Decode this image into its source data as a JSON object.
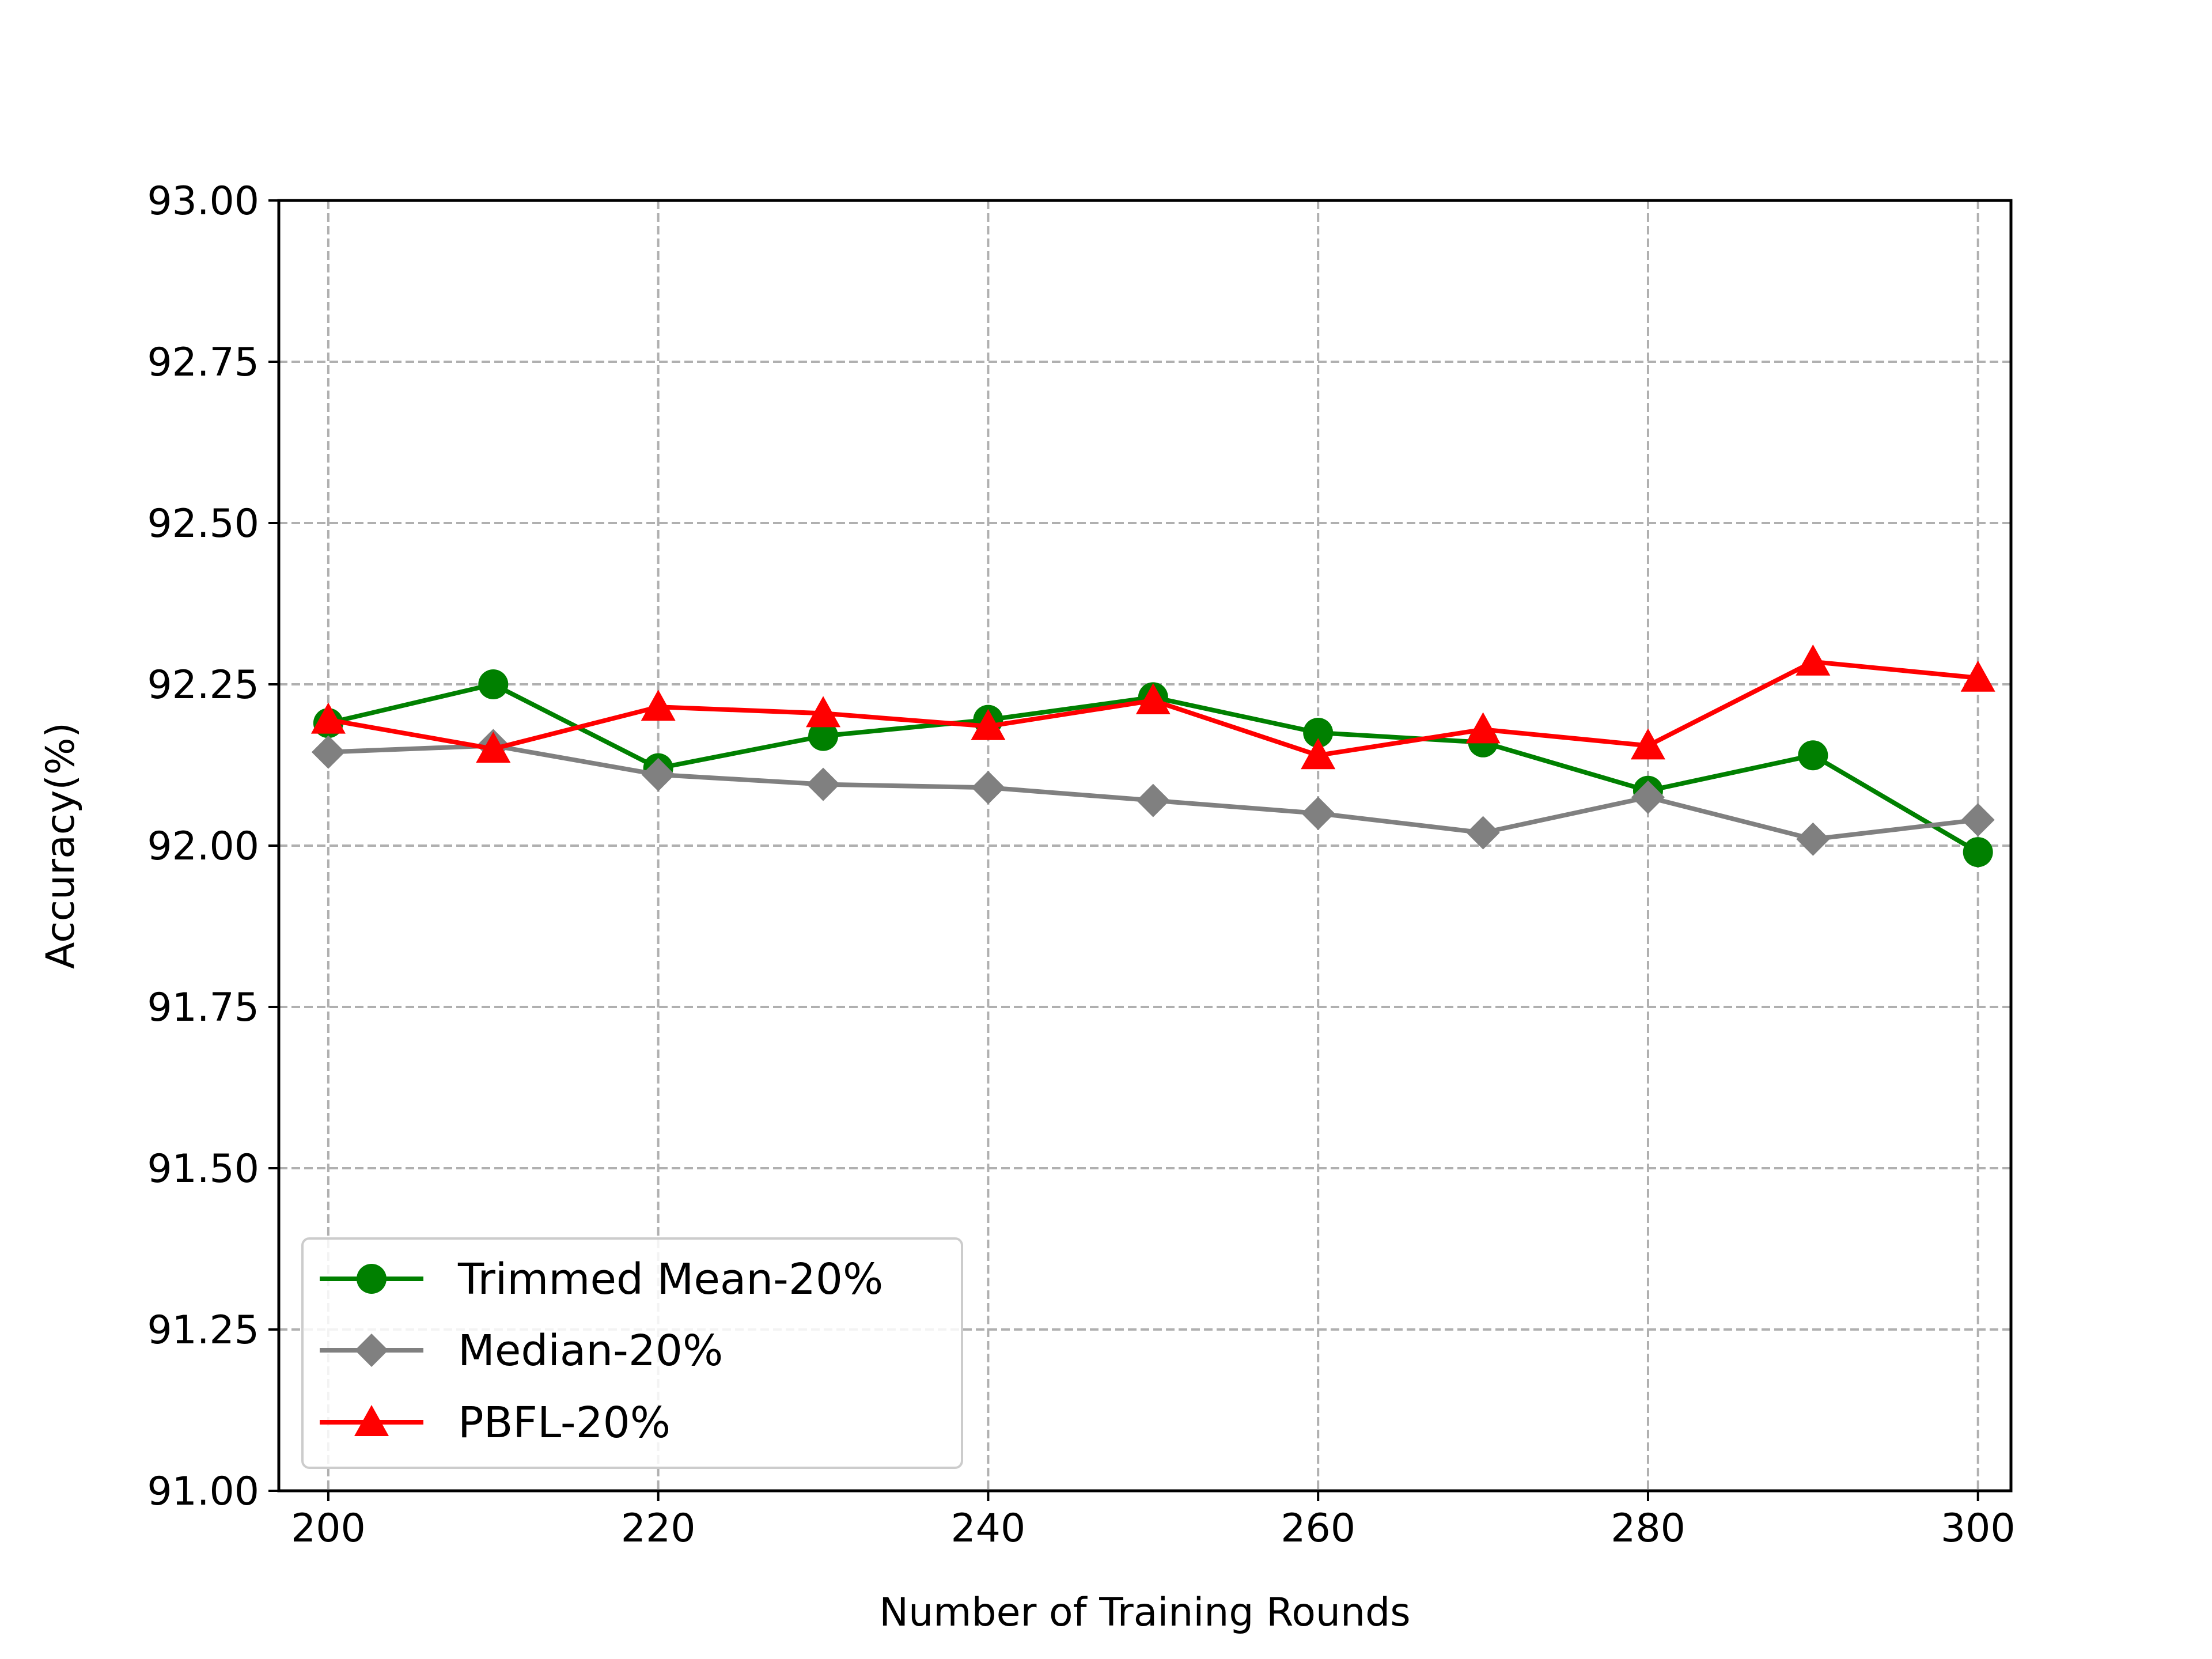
{
  "chart_data": {
    "type": "line",
    "title": "",
    "xlabel": "Number of Training Rounds",
    "ylabel": "Accuracy(%)",
    "xlim": [
      197,
      302
    ],
    "ylim": [
      91.0,
      93.0
    ],
    "x": [
      200,
      210,
      220,
      230,
      240,
      250,
      260,
      270,
      280,
      290,
      300
    ],
    "x_ticks": [
      200,
      220,
      240,
      260,
      280,
      300
    ],
    "x_tick_labels": [
      "200",
      "220",
      "240",
      "260",
      "280",
      "300"
    ],
    "y_ticks": [
      91.0,
      91.25,
      91.5,
      91.75,
      92.0,
      92.25,
      92.5,
      92.75,
      93.0
    ],
    "y_tick_labels": [
      "91.00",
      "91.25",
      "91.50",
      "91.75",
      "92.00",
      "92.25",
      "92.50",
      "92.75",
      "93.00"
    ],
    "grid": true,
    "legend_position": "lower-left",
    "series": [
      {
        "name": "Trimmed Mean-20%",
        "color": "#008000",
        "marker": "circle",
        "values": [
          92.19,
          92.25,
          92.12,
          92.17,
          92.195,
          92.23,
          92.175,
          92.16,
          92.085,
          92.14,
          91.99
        ]
      },
      {
        "name": "Median-20%",
        "color": "#808080",
        "marker": "diamond",
        "values": [
          92.145,
          92.155,
          92.11,
          92.095,
          92.09,
          92.07,
          92.05,
          92.02,
          92.075,
          92.01,
          92.04
        ]
      },
      {
        "name": "PBFL-20%",
        "color": "#ff0000",
        "marker": "triangle",
        "values": [
          92.195,
          92.15,
          92.215,
          92.205,
          92.185,
          92.225,
          92.14,
          92.18,
          92.155,
          92.285,
          92.26
        ]
      }
    ]
  }
}
